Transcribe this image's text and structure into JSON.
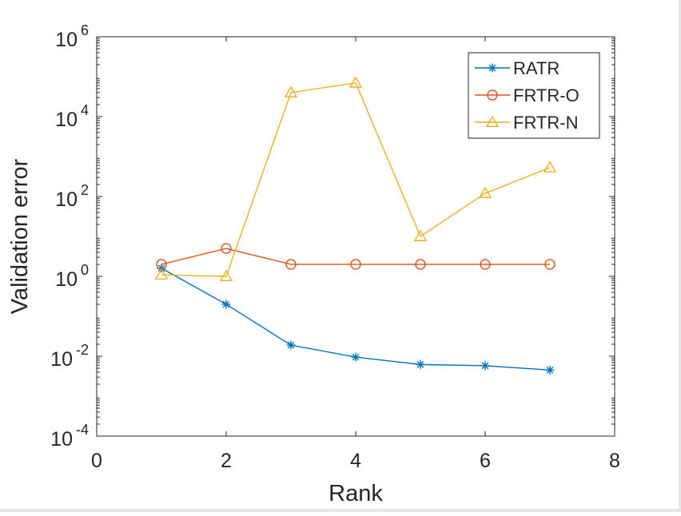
{
  "chart_data": {
    "type": "line",
    "title": "",
    "xlabel": "Rank",
    "ylabel": "Validation error",
    "x_scale": "linear",
    "y_scale": "log",
    "xlim": [
      0,
      8
    ],
    "ylim": [
      0.0001,
      1000000
    ],
    "x_ticks": [
      0,
      2,
      4,
      6,
      8
    ],
    "y_tick_exponents": [
      -4,
      -2,
      0,
      2,
      4,
      6
    ],
    "grid": false,
    "legend_position": "top-right",
    "series": [
      {
        "name": "RATR",
        "color": "#0072BD",
        "marker": "asterisk",
        "x": [
          1,
          2,
          3,
          4,
          5,
          6,
          7
        ],
        "y": [
          1.6,
          0.2,
          0.019,
          0.0095,
          0.0062,
          0.0058,
          0.0045
        ]
      },
      {
        "name": "FRTR-O",
        "color": "#D95319",
        "marker": "circle",
        "x": [
          1,
          2,
          3,
          4,
          5,
          6,
          7
        ],
        "y": [
          2,
          5,
          2,
          2,
          2,
          2,
          2
        ]
      },
      {
        "name": "FRTR-N",
        "color": "#EDB120",
        "marker": "triangle",
        "x": [
          1,
          2,
          3,
          4,
          5,
          6,
          7
        ],
        "y": [
          1.1,
          1.0,
          40000,
          70000,
          10,
          120,
          530
        ]
      }
    ]
  }
}
